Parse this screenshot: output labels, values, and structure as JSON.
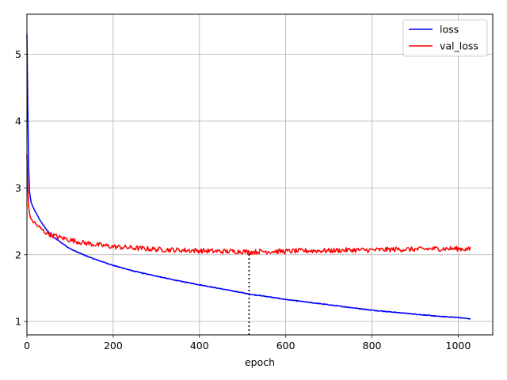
{
  "chart_data": {
    "type": "line",
    "title": "",
    "xlabel": "epoch",
    "ylabel": "",
    "xlim": [
      0,
      1080
    ],
    "ylim": [
      0.8,
      5.6
    ],
    "xticks": [
      0,
      200,
      400,
      600,
      800,
      1000
    ],
    "yticks": [
      1,
      2,
      3,
      4,
      5
    ],
    "grid": true,
    "legend": "top-right",
    "series": [
      {
        "name": "loss",
        "color": "#0000ff",
        "points": [
          [
            0,
            5.3
          ],
          [
            2,
            4.2
          ],
          [
            4,
            3.3
          ],
          [
            6,
            2.95
          ],
          [
            8,
            2.85
          ],
          [
            10,
            2.78
          ],
          [
            15,
            2.7
          ],
          [
            20,
            2.64
          ],
          [
            30,
            2.52
          ],
          [
            40,
            2.42
          ],
          [
            50,
            2.34
          ],
          [
            60,
            2.27
          ],
          [
            80,
            2.18
          ],
          [
            100,
            2.09
          ],
          [
            120,
            2.03
          ],
          [
            150,
            1.95
          ],
          [
            200,
            1.84
          ],
          [
            250,
            1.75
          ],
          [
            300,
            1.68
          ],
          [
            350,
            1.61
          ],
          [
            400,
            1.55
          ],
          [
            450,
            1.49
          ],
          [
            500,
            1.43
          ],
          [
            515,
            1.41
          ],
          [
            550,
            1.38
          ],
          [
            600,
            1.33
          ],
          [
            650,
            1.29
          ],
          [
            700,
            1.25
          ],
          [
            750,
            1.21
          ],
          [
            800,
            1.17
          ],
          [
            850,
            1.14
          ],
          [
            900,
            1.11
          ],
          [
            950,
            1.08
          ],
          [
            1000,
            1.06
          ],
          [
            1028,
            1.04
          ]
        ]
      },
      {
        "name": "val_loss",
        "color": "#ff0000",
        "noisy": true,
        "points": [
          [
            0,
            3.5
          ],
          [
            2,
            3.0
          ],
          [
            4,
            2.72
          ],
          [
            6,
            2.62
          ],
          [
            8,
            2.56
          ],
          [
            10,
            2.53
          ],
          [
            20,
            2.46
          ],
          [
            30,
            2.4
          ],
          [
            40,
            2.35
          ],
          [
            50,
            2.31
          ],
          [
            70,
            2.27
          ],
          [
            100,
            2.22
          ],
          [
            130,
            2.18
          ],
          [
            160,
            2.15
          ],
          [
            200,
            2.12
          ],
          [
            250,
            2.1
          ],
          [
            300,
            2.08
          ],
          [
            350,
            2.07
          ],
          [
            400,
            2.06
          ],
          [
            450,
            2.05
          ],
          [
            500,
            2.05
          ],
          [
            515,
            2.04
          ],
          [
            550,
            2.05
          ],
          [
            600,
            2.05
          ],
          [
            650,
            2.06
          ],
          [
            700,
            2.06
          ],
          [
            750,
            2.07
          ],
          [
            800,
            2.07
          ],
          [
            850,
            2.08
          ],
          [
            900,
            2.08
          ],
          [
            945,
            2.09
          ],
          [
            1000,
            2.09
          ],
          [
            1028,
            2.08
          ]
        ],
        "spikes": [
          [
            945,
            2.2
          ]
        ]
      }
    ],
    "annotations": [
      {
        "type": "vline",
        "style": "dotted",
        "color": "#000000",
        "x": 515,
        "y_from": 0.8,
        "y_to": 2.04
      }
    ]
  }
}
